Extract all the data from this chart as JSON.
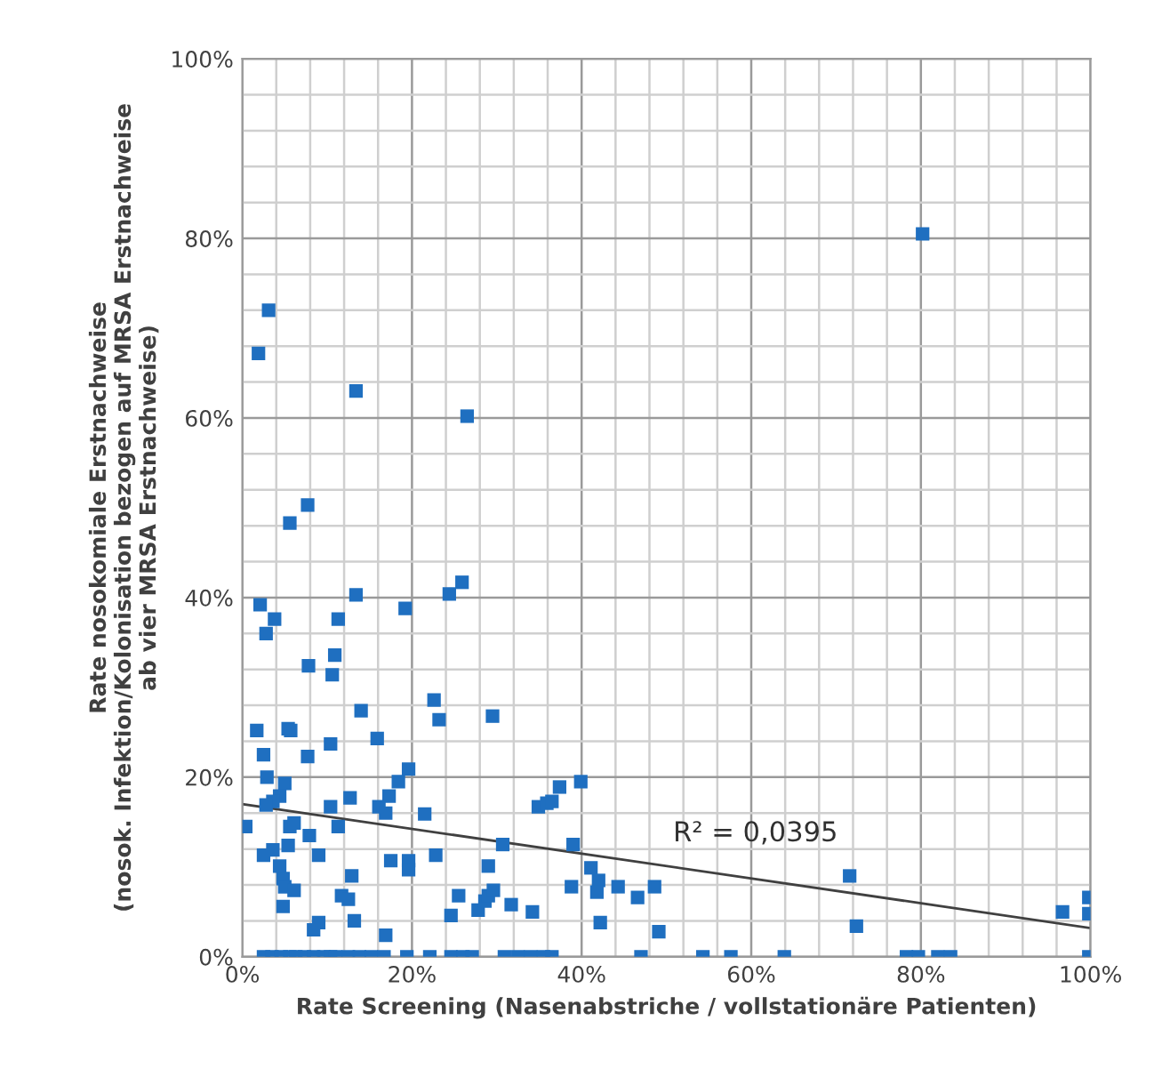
{
  "chart_data": {
    "type": "scatter",
    "xlabel": "Rate Screening (Nasenabstriche / vollstationäre Patienten)",
    "ylabel": "Rate nosokomiale Erstnachweise\n(nosok. Infektion/Kolonisation bezogen auf MRSA Erstnachweise\nab vier MRSA Erstnachweise)",
    "annotations": [
      "R² = 0,0395"
    ],
    "xlim": [
      0,
      100
    ],
    "ylim": [
      0,
      100
    ],
    "xticks": [
      {
        "value": 0,
        "label": "0%"
      },
      {
        "value": 4,
        "label": null
      },
      {
        "value": 8,
        "label": null
      },
      {
        "value": 12,
        "label": null
      },
      {
        "value": 16,
        "label": null
      },
      {
        "value": 20,
        "label": "20%"
      },
      {
        "value": 24,
        "label": null
      },
      {
        "value": 28,
        "label": null
      },
      {
        "value": 32,
        "label": null
      },
      {
        "value": 36,
        "label": null
      },
      {
        "value": 40,
        "label": "40%"
      },
      {
        "value": 44,
        "label": null
      },
      {
        "value": 48,
        "label": null
      },
      {
        "value": 52,
        "label": null
      },
      {
        "value": 56,
        "label": null
      },
      {
        "value": 60,
        "label": "60%"
      },
      {
        "value": 64,
        "label": null
      },
      {
        "value": 68,
        "label": null
      },
      {
        "value": 72,
        "label": null
      },
      {
        "value": 76,
        "label": null
      },
      {
        "value": 80,
        "label": "80%"
      },
      {
        "value": 84,
        "label": null
      },
      {
        "value": 88,
        "label": null
      },
      {
        "value": 92,
        "label": null
      },
      {
        "value": 96,
        "label": null
      },
      {
        "value": 100,
        "label": "100%"
      }
    ],
    "yticks": [
      {
        "value": 0,
        "label": "0%"
      },
      {
        "value": 4,
        "label": null
      },
      {
        "value": 8,
        "label": null
      },
      {
        "value": 12,
        "label": null
      },
      {
        "value": 16,
        "label": null
      },
      {
        "value": 20,
        "label": "20%"
      },
      {
        "value": 24,
        "label": null
      },
      {
        "value": 28,
        "label": null
      },
      {
        "value": 32,
        "label": null
      },
      {
        "value": 36,
        "label": null
      },
      {
        "value": 40,
        "label": "40%"
      },
      {
        "value": 44,
        "label": null
      },
      {
        "value": 48,
        "label": null
      },
      {
        "value": 52,
        "label": null
      },
      {
        "value": 56,
        "label": null
      },
      {
        "value": 60,
        "label": "60%"
      },
      {
        "value": 64,
        "label": null
      },
      {
        "value": 68,
        "label": null
      },
      {
        "value": 72,
        "label": null
      },
      {
        "value": 76,
        "label": null
      },
      {
        "value": 80,
        "label": "80%"
      },
      {
        "value": 84,
        "label": null
      },
      {
        "value": 88,
        "label": null
      },
      {
        "value": 92,
        "label": null
      },
      {
        "value": 96,
        "label": null
      },
      {
        "value": 100,
        "label": "100%"
      }
    ],
    "grid": true,
    "series": [
      {
        "color": "#1f6fc0",
        "marker": "square",
        "x": [
          80.2,
          3.1,
          1.9,
          13.4,
          26.5,
          7.7,
          5.6,
          2.1,
          3.8,
          11.3,
          13.4,
          19.2,
          24.4,
          25.9,
          2.8,
          7.8,
          10.9,
          10.6,
          22.6,
          23.2,
          29.5,
          14,
          1.7,
          5.4,
          5.7,
          10.4,
          15.9,
          2.5,
          7.7,
          2.9,
          5.0,
          4.4,
          3.6,
          2.8,
          19.6,
          18.4,
          17.3,
          16.1,
          16.9,
          12.7,
          10.4,
          21.5,
          0.4,
          5.6,
          6.1,
          11.3,
          7.9,
          5.4,
          3.6,
          2.5,
          9,
          4.4,
          17.5,
          19.6,
          19.6,
          22.8,
          30.7,
          29,
          4.8,
          5,
          6.1,
          12.9,
          11.7,
          12.5,
          4.8,
          13.2,
          9,
          8.4,
          16.9,
          25.5,
          24.6,
          27.8,
          28.6,
          29,
          29.6,
          31.7,
          34.2,
          34.9,
          35.9,
          36.5,
          37.4,
          39.9,
          39,
          41.1,
          38.8,
          42,
          41.8,
          44.3,
          46.6,
          48.6,
          42.2,
          49.1,
          71.6,
          72.4,
          96.7,
          99.8,
          99.8,
          2.5,
          3.5,
          4.6,
          5.6,
          6.3,
          7.3,
          8.4,
          9.6,
          10.4,
          11,
          12.5,
          13.8,
          15.2,
          16.7,
          19.4,
          22.1,
          24.6,
          26,
          27.1,
          30.9,
          32.5,
          34,
          35.5,
          36.5,
          47,
          54.3,
          57.6,
          63.9,
          78.3,
          79.7,
          82,
          83.5,
          99.8
        ],
        "values": [
          80.5,
          72,
          67.2,
          63,
          60.2,
          50.3,
          48.3,
          39.2,
          37.6,
          37.6,
          40.3,
          38.8,
          40.4,
          41.7,
          36,
          32.4,
          33.6,
          31.4,
          28.6,
          26.4,
          26.8,
          27.4,
          25.2,
          25.4,
          25.2,
          23.7,
          24.3,
          22.5,
          22.3,
          20,
          19.3,
          17.9,
          17.3,
          16.9,
          20.9,
          19.5,
          17.9,
          16.7,
          16,
          17.7,
          16.7,
          15.9,
          14.5,
          14.5,
          14.9,
          14.5,
          13.5,
          12.4,
          11.9,
          11.3,
          11.3,
          10.1,
          10.7,
          10.7,
          9.7,
          11.3,
          12.5,
          10.1,
          8.7,
          7.8,
          7.4,
          9,
          6.8,
          6.4,
          5.6,
          4,
          3.8,
          3,
          2.4,
          6.8,
          4.6,
          5.2,
          6.2,
          6.8,
          7.4,
          5.8,
          5,
          16.7,
          17.1,
          17.3,
          18.9,
          19.5,
          12.5,
          9.9,
          7.8,
          8.5,
          7.2,
          7.8,
          6.6,
          7.8,
          3.8,
          2.8,
          9,
          3.4,
          5,
          6.6,
          4.8,
          0,
          0,
          0,
          0,
          0,
          0,
          0,
          0,
          0,
          0,
          0,
          0,
          0,
          0,
          0,
          0,
          0,
          0,
          0,
          0,
          0,
          0,
          0,
          0,
          0,
          0,
          0,
          0,
          0,
          0,
          0,
          0,
          0
        ]
      },
      {
        "type": "line",
        "color": "#404040",
        "x": [
          0,
          100
        ],
        "values": [
          17,
          3.2
        ],
        "marker": "none"
      }
    ]
  }
}
